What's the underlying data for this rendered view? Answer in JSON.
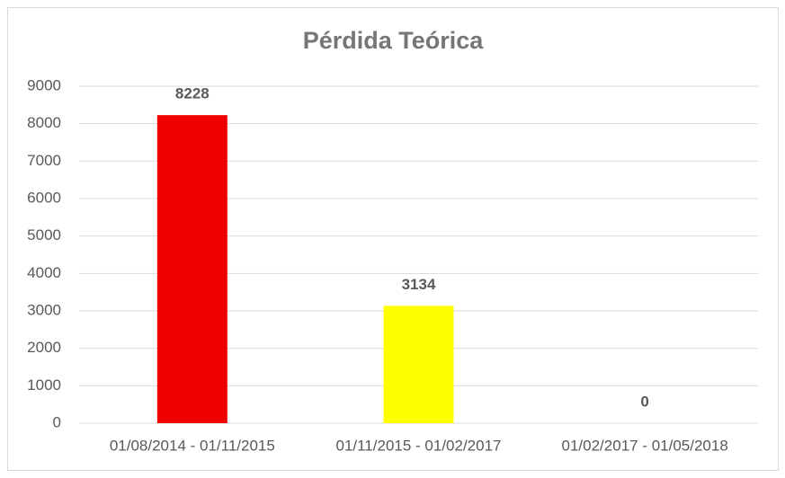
{
  "chart_data": {
    "type": "bar",
    "title": "Pérdida Teórica",
    "categories": [
      "01/08/2014 - 01/11/2015",
      "01/11/2015 - 01/02/2017",
      "01/02/2017 - 01/05/2018"
    ],
    "values": [
      8228,
      3134,
      0
    ],
    "colors": [
      "#ee0000",
      "#ffff00",
      null
    ],
    "ylim": [
      0,
      9000
    ],
    "yticks": [
      0,
      1000,
      2000,
      3000,
      4000,
      5000,
      6000,
      7000,
      8000,
      9000
    ],
    "grid": true
  }
}
